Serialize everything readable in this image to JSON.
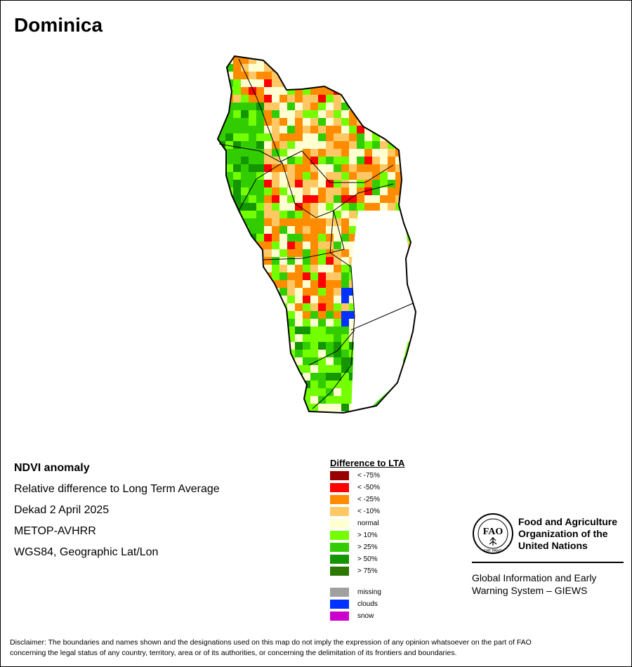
{
  "title": "Dominica",
  "info": {
    "product": "NDVI anomaly",
    "description": "Relative difference to Long Term Average",
    "period": "Dekad 2 April 2025",
    "sensor": "METOP-AVHRR",
    "projection": "WGS84, Geographic Lat/Lon"
  },
  "legend": {
    "title": "Difference to LTA",
    "classes": [
      {
        "label": "< -75%",
        "color": "#990000"
      },
      {
        "label": "< -50%",
        "color": "#ff0000"
      },
      {
        "label": "< -25%",
        "color": "#ff8c00"
      },
      {
        "label": "< -10%",
        "color": "#ffc864"
      },
      {
        "label": "normal",
        "color": "#ffffd2"
      },
      {
        "label": "> 10%",
        "color": "#73ff00"
      },
      {
        "label": "> 25%",
        "color": "#32cd00"
      },
      {
        "label": "> 50%",
        "color": "#149600"
      },
      {
        "label": "> 75%",
        "color": "#2d7800"
      }
    ],
    "extra": [
      {
        "label": "missing",
        "color": "#a0a0a0"
      },
      {
        "label": "clouds",
        "color": "#0032ff"
      },
      {
        "label": "snow",
        "color": "#cc00cc"
      }
    ]
  },
  "org": {
    "logo_text": "FAO",
    "logo_motto": "FIAT PANIS",
    "name_line1": "Food and Agriculture",
    "name_line2": "Organization of the",
    "name_line3": "United Nations",
    "system_line1": "Global Information and Early",
    "system_line2": "Warning System – GIEWS"
  },
  "disclaimer_line1": "Disclaimer: The boundaries and names shown and the designations used on this map do not imply the expression of any opinion whatsoever on the part of FAO",
  "disclaimer_line2": "concerning the legal status of any country, territory, area or of its authorities, or concerning the delimitation of its frontiers and boundaries."
}
